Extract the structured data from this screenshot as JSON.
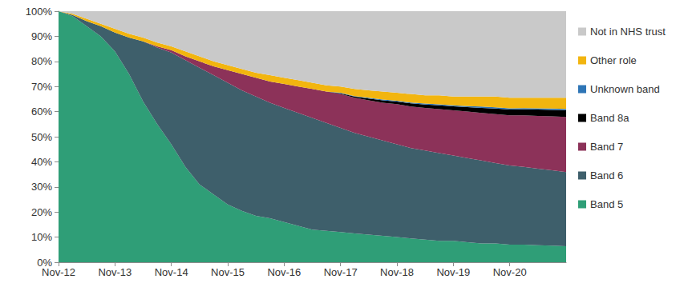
{
  "chart_data": {
    "type": "area",
    "stacked": true,
    "grid": false,
    "legend": "right",
    "categories": [
      "Nov-12",
      null,
      null,
      null,
      "Nov-13",
      null,
      null,
      null,
      "Nov-14",
      null,
      null,
      null,
      "Nov-15",
      null,
      null,
      null,
      "Nov-16",
      null,
      null,
      null,
      "Nov-17",
      null,
      null,
      null,
      "Nov-18",
      null,
      null,
      null,
      "Nov-19",
      null,
      null,
      null,
      "Nov-20",
      null,
      null,
      null,
      null
    ],
    "ylim": [
      0,
      100
    ],
    "yticks": [
      {
        "value": 0,
        "label": "0%"
      },
      {
        "value": 10,
        "label": "10%"
      },
      {
        "value": 20,
        "label": "20%"
      },
      {
        "value": 30,
        "label": "30%"
      },
      {
        "value": 40,
        "label": "40%"
      },
      {
        "value": 50,
        "label": "50%"
      },
      {
        "value": 60,
        "label": "60%"
      },
      {
        "value": 70,
        "label": "70%"
      },
      {
        "value": 80,
        "label": "80%"
      },
      {
        "value": 90,
        "label": "90%"
      },
      {
        "value": 100,
        "label": "100%"
      }
    ],
    "series": [
      {
        "name": "Band 5",
        "color": "#2f9e77",
        "values": [
          100,
          98,
          94,
          90,
          84,
          75,
          64,
          55,
          47,
          38,
          31,
          27,
          23,
          20.5,
          18.5,
          17.5,
          16,
          14.5,
          13,
          12.5,
          12,
          11.5,
          11,
          10.5,
          10,
          9.5,
          9,
          8.5,
          8.5,
          8,
          7.5,
          7.5,
          7,
          7,
          6.8,
          6.6,
          6.4
        ]
      },
      {
        "name": "Band 6",
        "color": "#3e5f6b",
        "values": [
          0,
          0.5,
          2,
          4,
          7.5,
          14.5,
          24,
          30.5,
          36.5,
          42.5,
          46.5,
          47.5,
          48.5,
          48,
          47.5,
          46,
          45.5,
          45,
          44.5,
          43,
          41.5,
          40,
          39,
          38,
          37,
          36,
          35.5,
          35,
          34,
          33.5,
          33,
          32,
          31.5,
          31,
          30.5,
          30,
          29.5
        ]
      },
      {
        "name": "Band 7",
        "color": "#8c3259",
        "values": [
          0,
          0,
          0,
          0,
          0,
          0,
          0,
          0.5,
          1,
          1.5,
          2.5,
          3.5,
          5,
          6.5,
          7.5,
          8.5,
          9.5,
          10.5,
          11.5,
          12.5,
          13.5,
          14,
          14.5,
          15,
          16,
          16.5,
          17,
          17.5,
          18,
          18.5,
          19,
          19.5,
          20,
          20.5,
          21,
          21.5,
          22
        ]
      },
      {
        "name": "Band 8a",
        "color": "#000000",
        "values": [
          0,
          0,
          0,
          0,
          0,
          0,
          0,
          0,
          0,
          0,
          0,
          0,
          0,
          0,
          0,
          0,
          0,
          0,
          0,
          0,
          0.3,
          0.5,
          0.7,
          1,
          1,
          1.3,
          1.3,
          1.5,
          1.6,
          1.8,
          2,
          2.2,
          2.3,
          2.4,
          2.5,
          2.6,
          2.7
        ]
      },
      {
        "name": "Unknown band",
        "color": "#2e75b6",
        "values": [
          0,
          0,
          0,
          0,
          0,
          0,
          0,
          0,
          0,
          0,
          0,
          0,
          0,
          0,
          0,
          0,
          0,
          0,
          0,
          0,
          0.2,
          0.2,
          0.3,
          0.3,
          0.3,
          0.3,
          0.4,
          0.4,
          0.4,
          0.4,
          0.5,
          0.5,
          0.5,
          0.5,
          0.5,
          0.5,
          0.5
        ]
      },
      {
        "name": "Other role",
        "color": "#f2b50f",
        "values": [
          0,
          0.5,
          1,
          1,
          1.5,
          1.5,
          1.5,
          1.5,
          1.5,
          2,
          2,
          2,
          2,
          2,
          2,
          2.5,
          2.5,
          2.5,
          2.5,
          2.5,
          2.5,
          2.8,
          3,
          3.2,
          3.2,
          3.4,
          3.3,
          3.6,
          3.5,
          3.8,
          4,
          4.3,
          4.2,
          4.1,
          4.2,
          4.3,
          4.4
        ]
      },
      {
        "name": "Not in NHS trust",
        "color": "#c9c9c9",
        "values": [
          0,
          1,
          3,
          5,
          7,
          9,
          10.5,
          12.5,
          14,
          16,
          18,
          20,
          21.5,
          23,
          24.5,
          25.5,
          26.5,
          27.5,
          28.5,
          29.5,
          30,
          31,
          31.5,
          32,
          32.5,
          33,
          33.5,
          33.5,
          34,
          34,
          34,
          34,
          34.5,
          34.5,
          34.5,
          34.5,
          34.5
        ]
      }
    ]
  }
}
